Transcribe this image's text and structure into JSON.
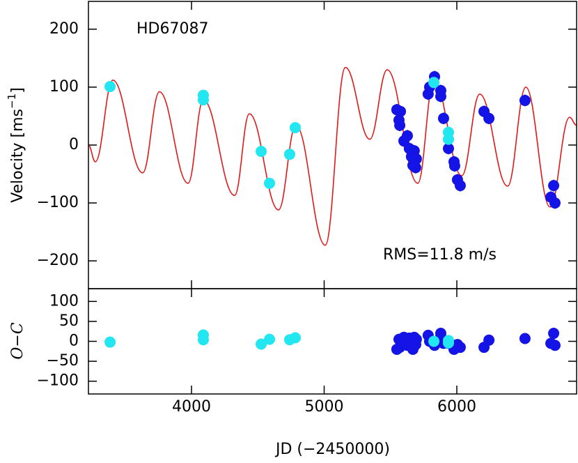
{
  "chart_data": [
    {
      "type": "scatter",
      "annotations": [
        "HD67087",
        "RMS=11.8 m/s"
      ],
      "ylabel": "Velocity [ms",
      "ylabel_sup": "−1",
      "ylabel_end": "]",
      "xlim": [
        3223,
        6903
      ],
      "ylim": [
        -248,
        248
      ],
      "xticks": [
        4000,
        5000,
        6000
      ],
      "yticks": [
        200,
        100,
        0,
        {
          "value": -100,
          "label": "−100"
        },
        {
          "value": -200,
          "label": "−200"
        }
      ],
      "series": [
        {
          "style": "line",
          "color": "#e01818",
          "x": [
            3223,
            3275,
            3407,
            3632,
            3758,
            3974,
            4089,
            4325,
            4436,
            4656,
            4787,
            5008,
            5160,
            5344,
            5475,
            5706,
            5827,
            6037,
            6173,
            6383,
            6520,
            6703,
            6850,
            6903
          ],
          "values": [
            0,
            -29,
            112,
            -48,
            92,
            -66,
            78,
            -87,
            54,
            -112,
            34,
            -173,
            134,
            10,
            130,
            -66,
            112,
            -53,
            88,
            -71,
            100,
            -107,
            48,
            34
          ]
        },
        {
          "style": "points",
          "color": "#1414e6",
          "x": [
            5548,
            5564,
            5570,
            5575,
            5601,
            5627,
            5642,
            5658,
            5669,
            5679,
            5690,
            5695,
            5784,
            5795,
            5832,
            5879,
            5879,
            5900,
            5937,
            5979,
            5984,
            6005,
            6026,
            6205,
            6242,
            6514,
            6709,
            6730,
            6740
          ],
          "values": [
            61,
            43,
            34,
            58,
            7,
            16,
            -6,
            -20,
            -35,
            -10,
            -39,
            -24,
            88,
            100,
            118,
            94,
            84,
            46,
            -6,
            -29,
            -36,
            -60,
            -70,
            58,
            46,
            77,
            -90,
            -70,
            -100
          ],
          "errors": [
            10,
            10,
            10,
            10,
            10,
            10,
            10,
            10,
            10,
            10,
            10,
            10,
            10,
            10,
            10,
            10,
            10,
            10,
            10,
            10,
            10,
            10,
            10,
            10,
            10,
            10,
            10,
            10,
            10
          ]
        },
        {
          "style": "points",
          "color": "#22e6f0",
          "x": [
            3386,
            4089,
            4089,
            4525,
            4588,
            4740,
            4782,
            5827,
            5937,
            5937
          ],
          "values": [
            101,
            86,
            78,
            -11,
            -66,
            -16,
            30,
            108,
            22,
            10
          ],
          "errors": [
            5,
            5,
            5,
            5,
            5,
            5,
            5,
            5,
            5,
            5
          ]
        }
      ]
    },
    {
      "type": "scatter",
      "ylabel": "O−C",
      "xlabel": "JD (−2450000)",
      "xticklabels": true,
      "xlim": [
        3223,
        6903
      ],
      "ylim": [
        -132,
        132
      ],
      "xticks": [
        4000,
        5000,
        6000
      ],
      "yticks": [
        100,
        50,
        0,
        {
          "value": -50,
          "label": "−50"
        },
        {
          "value": -100,
          "label": "−100"
        }
      ],
      "series": [
        {
          "style": "points",
          "color": "#1414e6",
          "x": [
            5548,
            5564,
            5570,
            5575,
            5601,
            5627,
            5642,
            5658,
            5669,
            5679,
            5690,
            5695,
            5784,
            5795,
            5832,
            5879,
            5879,
            5900,
            5937,
            5979,
            5984,
            6005,
            6026,
            6205,
            6242,
            6514,
            6709,
            6730,
            6740
          ],
          "values": [
            -20,
            5,
            -15,
            0,
            10,
            -10,
            8,
            -5,
            -20,
            10,
            -8,
            5,
            15,
            0,
            -10,
            20,
            12,
            -5,
            -5,
            -20,
            -10,
            -8,
            -15,
            -15,
            3,
            7,
            -5,
            20,
            -10
          ],
          "errors": [
            10,
            10,
            10,
            10,
            10,
            10,
            10,
            10,
            10,
            10,
            10,
            10,
            10,
            10,
            10,
            10,
            10,
            10,
            10,
            10,
            10,
            10,
            10,
            10,
            10,
            10,
            10,
            10,
            10
          ]
        },
        {
          "style": "points",
          "color": "#22e6f0",
          "x": [
            3386,
            4089,
            4089,
            4525,
            4588,
            4740,
            4782,
            5827,
            5937,
            5937
          ],
          "values": [
            -2,
            16,
            4,
            -7,
            5,
            4,
            9,
            0,
            2,
            -4
          ],
          "errors": [
            5,
            5,
            5,
            5,
            5,
            5,
            5,
            5,
            5,
            5
          ]
        }
      ]
    }
  ]
}
